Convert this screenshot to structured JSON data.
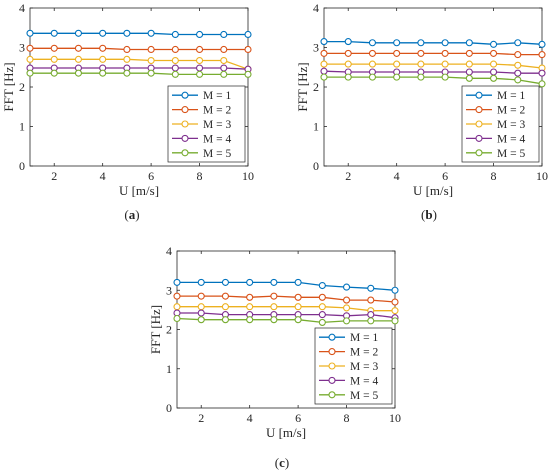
{
  "figure": {
    "panel_labels": [
      "(a)",
      "(b)",
      "(c)"
    ]
  },
  "chart_data": [
    {
      "type": "line",
      "panel": "(a)",
      "xlabel": "U [m/s]",
      "ylabel": "FFT [Hz]",
      "xlim": [
        1,
        10
      ],
      "ylim": [
        0,
        4
      ],
      "xticks": [
        2,
        4,
        6,
        8,
        10
      ],
      "yticks": [
        0,
        1,
        2,
        3,
        4
      ],
      "grid": false,
      "legend_position": "bottom-right",
      "x": [
        1,
        2,
        3,
        4,
        5,
        6,
        7,
        8,
        9,
        10
      ],
      "series": [
        {
          "name": "M = 1",
          "color": "#0072BD",
          "values": [
            3.36,
            3.36,
            3.36,
            3.36,
            3.36,
            3.36,
            3.33,
            3.33,
            3.33,
            3.33
          ]
        },
        {
          "name": "M = 2",
          "color": "#D95319",
          "values": [
            2.98,
            2.98,
            2.98,
            2.98,
            2.95,
            2.95,
            2.95,
            2.95,
            2.95,
            2.95
          ]
        },
        {
          "name": "M = 3",
          "color": "#EDB120",
          "values": [
            2.7,
            2.7,
            2.7,
            2.7,
            2.7,
            2.67,
            2.67,
            2.67,
            2.67,
            2.45
          ]
        },
        {
          "name": "M = 4",
          "color": "#7E2F8E",
          "values": [
            2.48,
            2.48,
            2.48,
            2.48,
            2.48,
            2.48,
            2.48,
            2.48,
            2.48,
            2.45
          ]
        },
        {
          "name": "M = 5",
          "color": "#77AC30",
          "values": [
            2.35,
            2.35,
            2.35,
            2.35,
            2.35,
            2.35,
            2.32,
            2.32,
            2.32,
            2.32
          ]
        }
      ]
    },
    {
      "type": "line",
      "panel": "(b)",
      "xlabel": "U [m/s]",
      "ylabel": "FFT [Hz]",
      "xlim": [
        1,
        10
      ],
      "ylim": [
        0,
        4
      ],
      "xticks": [
        2,
        4,
        6,
        8,
        10
      ],
      "yticks": [
        0,
        1,
        2,
        3,
        4
      ],
      "grid": false,
      "legend_position": "bottom-right",
      "x": [
        1,
        2,
        3,
        4,
        5,
        6,
        7,
        8,
        9,
        10
      ],
      "series": [
        {
          "name": "M = 1",
          "color": "#0072BD",
          "values": [
            3.15,
            3.15,
            3.12,
            3.12,
            3.12,
            3.12,
            3.12,
            3.08,
            3.12,
            3.08
          ]
        },
        {
          "name": "M = 2",
          "color": "#D95319",
          "values": [
            2.85,
            2.85,
            2.85,
            2.85,
            2.85,
            2.85,
            2.85,
            2.85,
            2.82,
            2.82
          ]
        },
        {
          "name": "M = 3",
          "color": "#EDB120",
          "values": [
            2.58,
            2.58,
            2.58,
            2.58,
            2.58,
            2.58,
            2.58,
            2.58,
            2.55,
            2.48
          ]
        },
        {
          "name": "M = 4",
          "color": "#7E2F8E",
          "values": [
            2.4,
            2.38,
            2.38,
            2.38,
            2.38,
            2.38,
            2.38,
            2.38,
            2.35,
            2.35
          ]
        },
        {
          "name": "M = 5",
          "color": "#77AC30",
          "values": [
            2.25,
            2.25,
            2.25,
            2.25,
            2.25,
            2.25,
            2.22,
            2.22,
            2.18,
            2.08
          ]
        }
      ]
    },
    {
      "type": "line",
      "panel": "(c)",
      "xlabel": "U [m/s]",
      "ylabel": "FFT [Hz]",
      "xlim": [
        1,
        10
      ],
      "ylim": [
        0,
        4
      ],
      "xticks": [
        2,
        4,
        6,
        8,
        10
      ],
      "yticks": [
        0,
        1,
        2,
        3,
        4
      ],
      "grid": false,
      "legend_position": "bottom-right",
      "x": [
        1,
        2,
        3,
        4,
        5,
        6,
        7,
        8,
        9,
        10
      ],
      "series": [
        {
          "name": "M = 1",
          "color": "#0072BD",
          "values": [
            3.2,
            3.2,
            3.2,
            3.2,
            3.2,
            3.2,
            3.12,
            3.08,
            3.05,
            3.0
          ]
        },
        {
          "name": "M = 2",
          "color": "#D95319",
          "values": [
            2.85,
            2.85,
            2.85,
            2.82,
            2.85,
            2.82,
            2.82,
            2.75,
            2.75,
            2.7
          ]
        },
        {
          "name": "M = 3",
          "color": "#EDB120",
          "values": [
            2.58,
            2.58,
            2.58,
            2.58,
            2.58,
            2.58,
            2.58,
            2.55,
            2.48,
            2.48
          ]
        },
        {
          "name": "M = 4",
          "color": "#7E2F8E",
          "values": [
            2.42,
            2.42,
            2.38,
            2.38,
            2.38,
            2.38,
            2.38,
            2.35,
            2.38,
            2.3
          ]
        },
        {
          "name": "M = 5",
          "color": "#77AC30",
          "values": [
            2.28,
            2.25,
            2.25,
            2.25,
            2.25,
            2.25,
            2.18,
            2.22,
            2.22,
            2.22
          ]
        }
      ]
    }
  ]
}
